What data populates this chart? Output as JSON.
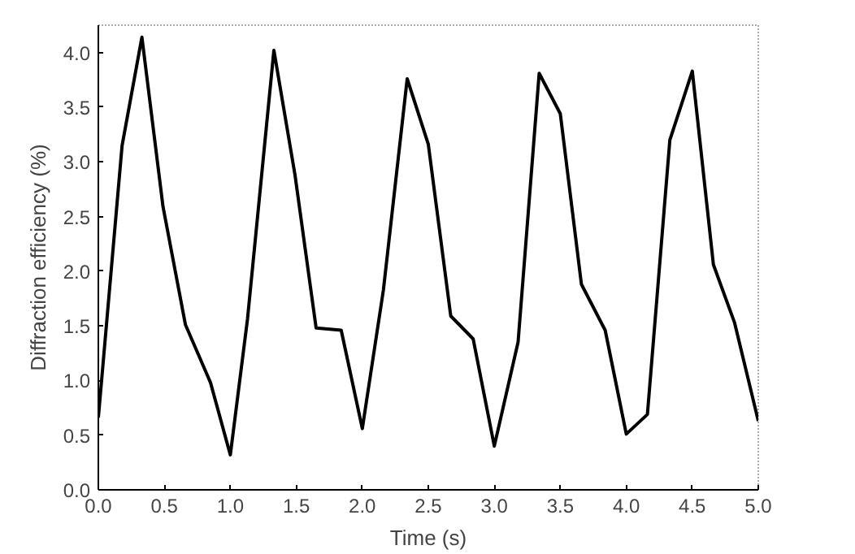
{
  "chart_data": {
    "type": "line",
    "xlabel": "Time (s)",
    "ylabel": "Diffraction efficiency (%)",
    "xlim": [
      0,
      5
    ],
    "ylim": [
      0,
      4.25
    ],
    "xticks": [
      {
        "value": 0,
        "label": "0.0"
      },
      {
        "value": 0.5,
        "label": "0.5"
      },
      {
        "value": 1,
        "label": "1.0"
      },
      {
        "value": 1.5,
        "label": "1.5"
      },
      {
        "value": 2,
        "label": "2.0"
      },
      {
        "value": 2.5,
        "label": "2.5"
      },
      {
        "value": 3,
        "label": "3.0"
      },
      {
        "value": 3.5,
        "label": "3.5"
      },
      {
        "value": 4,
        "label": "4.0"
      },
      {
        "value": 4.5,
        "label": "4.5"
      },
      {
        "value": 5,
        "label": "5.0"
      }
    ],
    "yticks": [
      {
        "value": 0,
        "label": "0.0"
      },
      {
        "value": 0.5,
        "label": "0.5"
      },
      {
        "value": 1,
        "label": "1.0"
      },
      {
        "value": 1.5,
        "label": "1.5"
      },
      {
        "value": 2,
        "label": "2.0"
      },
      {
        "value": 2.5,
        "label": "2.5"
      },
      {
        "value": 3,
        "label": "3.0"
      },
      {
        "value": 3.5,
        "label": "3.5"
      },
      {
        "value": 4,
        "label": "4.0"
      }
    ],
    "grid": false,
    "marker": "none",
    "line_style": "solid",
    "series": [
      {
        "color": "#000000",
        "x": [
          0,
          0.18,
          0.33,
          0.49,
          0.66,
          0.85,
          1.0,
          1.13,
          1.33,
          1.49,
          1.65,
          1.84,
          2.0,
          2.16,
          2.34,
          2.5,
          2.67,
          2.84,
          3.0,
          3.18,
          3.34,
          3.5,
          3.66,
          3.84,
          4.0,
          4.16,
          4.33,
          4.5,
          4.66,
          4.82,
          5.0
        ],
        "values": [
          0.66,
          3.15,
          4.14,
          2.59,
          1.51,
          0.98,
          0.32,
          1.56,
          4.02,
          2.88,
          1.48,
          1.46,
          0.56,
          1.83,
          3.76,
          3.16,
          1.59,
          1.38,
          0.4,
          1.35,
          3.81,
          3.44,
          1.88,
          1.46,
          0.51,
          0.69,
          3.2,
          3.83,
          2.06,
          1.53,
          0.63
        ]
      }
    ]
  }
}
